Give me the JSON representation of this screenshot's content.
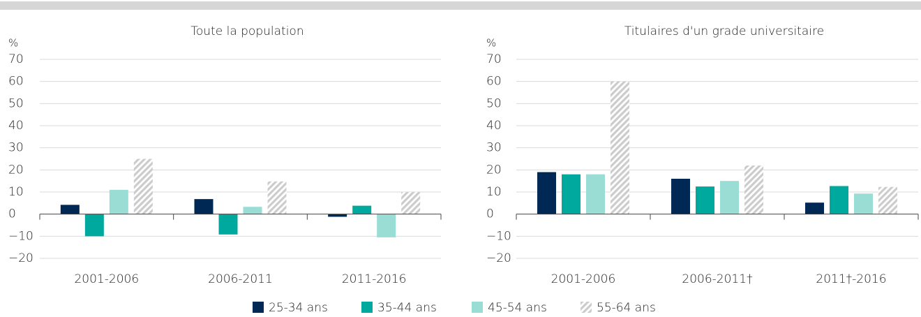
{
  "chart_data": [
    {
      "type": "bar",
      "title": "Toute la population",
      "ylabel": "%",
      "categories": [
        "2001-2006",
        "2006-2011",
        "2011-2016"
      ],
      "ylim": [
        -20,
        70
      ],
      "yticks": [
        {
          "value": -20,
          "label": "−20"
        },
        {
          "value": -10,
          "label": "−10"
        },
        0,
        10,
        20,
        30,
        40,
        50,
        60,
        70
      ],
      "grid": true,
      "series": [
        {
          "name": "25-34 ans",
          "color": "#002855",
          "values": [
            4.2,
            6.8,
            -1.2
          ]
        },
        {
          "name": "35-44 ans",
          "color": "#00a99d",
          "values": [
            -10,
            -9.2,
            3.8
          ]
        },
        {
          "name": "45-54 ans",
          "color": "#99ddd5",
          "values": [
            11,
            3.3,
            -10.5
          ]
        },
        {
          "name": "55-64 ans",
          "color": "#cccccc",
          "pattern": "hatch",
          "values": [
            25,
            14.8,
            10
          ]
        }
      ]
    },
    {
      "type": "bar",
      "title": "Titulaires d'un grade universitaire",
      "ylabel": "%",
      "categories": [
        "2001-2006",
        "2006-2011†",
        "2011†-2016"
      ],
      "ylim": [
        -20,
        70
      ],
      "yticks": [
        {
          "value": -20,
          "label": "−20"
        },
        {
          "value": -10,
          "label": "−10"
        },
        0,
        10,
        20,
        30,
        40,
        50,
        60,
        70
      ],
      "grid": true,
      "series": [
        {
          "name": "25-34 ans",
          "color": "#002855",
          "values": [
            19,
            16,
            5.2
          ]
        },
        {
          "name": "35-44 ans",
          "color": "#00a99d",
          "values": [
            18,
            12.5,
            12.7
          ]
        },
        {
          "name": "45-54 ans",
          "color": "#99ddd5",
          "values": [
            18,
            15,
            9.3
          ]
        },
        {
          "name": "55-64 ans",
          "color": "#cccccc",
          "pattern": "hatch",
          "values": [
            60,
            22,
            12.3
          ]
        }
      ]
    }
  ]
}
